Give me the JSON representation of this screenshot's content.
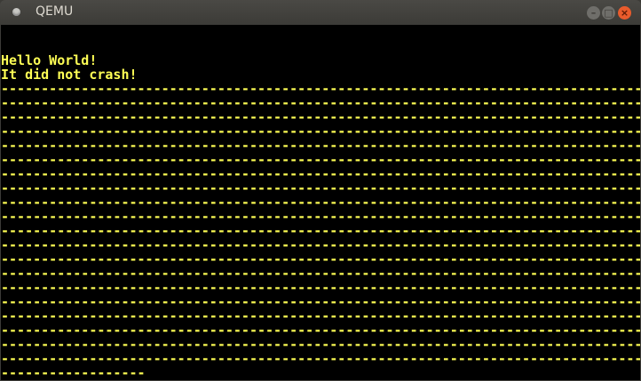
{
  "window": {
    "title": "QEMU",
    "minimize_icon": "minimize-icon",
    "maximize_icon": "maximize-icon",
    "close_icon": "close-icon"
  },
  "colors": {
    "text": "#ffff55",
    "background": "#000000",
    "close": "#e95b2c"
  },
  "console": {
    "lines": [
      "",
      "",
      "Hello World!",
      "It did not crash!",
      "--------------------------------------------------------------------------------",
      "--------------------------------------------------------------------------------",
      "--------------------------------------------------------------------------------",
      "--------------------------------------------------------------------------------",
      "--------------------------------------------------------------------------------",
      "--------------------------------------------------------------------------------",
      "--------------------------------------------------------------------------------",
      "--------------------------------------------------------------------------------",
      "--------------------------------------------------------------------------------",
      "--------------------------------------------------------------------------------",
      "--------------------------------------------------------------------------------",
      "--------------------------------------------------------------------------------",
      "--------------------------------------------------------------------------------",
      "--------------------------------------------------------------------------------",
      "--------------------------------------------------------------------------------",
      "--------------------------------------------------------------------------------",
      "--------------------------------------------------------------------------------",
      "--------------------------------------------------------------------------------",
      "--------------------------------------------------------------------------------",
      "--------------------------------------------------------------------------------",
      "------------------"
    ]
  }
}
